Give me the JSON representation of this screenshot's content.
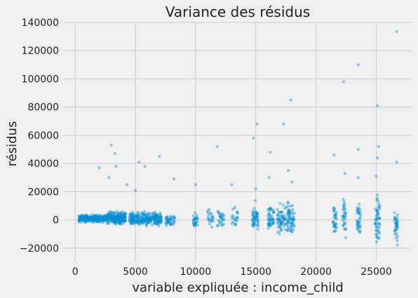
{
  "chart_data": {
    "type": "scatter",
    "title": "Variance des résidus",
    "xlabel": "variable expliquée : income_child",
    "ylabel": "résidus",
    "xlim": [
      -1000,
      28000
    ],
    "ylim": [
      -30000,
      140000
    ],
    "xticks": [
      0,
      5000,
      10000,
      15000,
      20000,
      25000
    ],
    "xtick_labels": [
      "0",
      "5000",
      "10000",
      "15000",
      "20000",
      "25000"
    ],
    "yticks": [
      -20000,
      0,
      20000,
      40000,
      60000,
      80000,
      100000,
      120000,
      140000
    ],
    "ytick_labels": [
      "−20000",
      "0",
      "20000",
      "40000",
      "60000",
      "80000",
      "100000",
      "120000",
      "140000"
    ],
    "grid": true,
    "background_color": "#f0f0f0",
    "grid_color": "#cbcbcb",
    "point_color": "#008fd5",
    "point_opacity": 0.4,
    "clusters": [
      {
        "x_range": [
          300,
          2500
        ],
        "y_range": [
          -2500,
          4500
        ],
        "count": 260
      },
      {
        "x_range": [
          2500,
          4200
        ],
        "y_range": [
          -4000,
          7000
        ],
        "count": 230
      },
      {
        "x_range": [
          4500,
          7200
        ],
        "y_range": [
          -6000,
          7000
        ],
        "count": 260
      },
      {
        "x_range": [
          7500,
          8300
        ],
        "y_range": [
          -6000,
          5000
        ],
        "count": 40
      },
      {
        "x_range": [
          9800,
          10200
        ],
        "y_range": [
          -9000,
          8000
        ],
        "count": 25
      },
      {
        "x_range": [
          11000,
          11500
        ],
        "y_range": [
          -8000,
          10000
        ],
        "count": 20
      },
      {
        "x_range": [
          11800,
          12400
        ],
        "y_range": [
          -8000,
          10000
        ],
        "count": 25
      },
      {
        "x_range": [
          13000,
          13500
        ],
        "y_range": [
          -8000,
          10000
        ],
        "count": 20
      },
      {
        "x_range": [
          14700,
          15200
        ],
        "y_range": [
          -14000,
          16000
        ],
        "count": 50
      },
      {
        "x_range": [
          16000,
          16500
        ],
        "y_range": [
          -10000,
          14000
        ],
        "count": 45
      },
      {
        "x_range": [
          16800,
          18200
        ],
        "y_range": [
          -14000,
          16000
        ],
        "count": 120
      },
      {
        "x_range": [
          21400,
          21700
        ],
        "y_range": [
          -16000,
          18000
        ],
        "count": 30
      },
      {
        "x_range": [
          22200,
          22500
        ],
        "y_range": [
          -18000,
          20000
        ],
        "count": 30
      },
      {
        "x_range": [
          23400,
          23700
        ],
        "y_range": [
          -20000,
          20000
        ],
        "count": 35
      },
      {
        "x_range": [
          24900,
          25300
        ],
        "y_range": [
          -24000,
          24000
        ],
        "count": 50
      },
      {
        "x_range": [
          26500,
          26800
        ],
        "y_range": [
          -22000,
          16000
        ],
        "count": 35
      }
    ],
    "outliers": [
      {
        "x": 3000,
        "y": 53000
      },
      {
        "x": 3300,
        "y": 47000
      },
      {
        "x": 3400,
        "y": 38000
      },
      {
        "x": 2000,
        "y": 37000
      },
      {
        "x": 2800,
        "y": 30000
      },
      {
        "x": 4300,
        "y": 25000
      },
      {
        "x": 5000,
        "y": 21000
      },
      {
        "x": 5300,
        "y": 41000
      },
      {
        "x": 5800,
        "y": 38000
      },
      {
        "x": 7000,
        "y": 45000
      },
      {
        "x": 8200,
        "y": 29000
      },
      {
        "x": 10000,
        "y": 25000
      },
      {
        "x": 11800,
        "y": 52000
      },
      {
        "x": 13000,
        "y": 25000
      },
      {
        "x": 14800,
        "y": 58000
      },
      {
        "x": 15100,
        "y": 68000
      },
      {
        "x": 16200,
        "y": 48000
      },
      {
        "x": 17300,
        "y": 68000
      },
      {
        "x": 17900,
        "y": 85000
      },
      {
        "x": 17700,
        "y": 35000
      },
      {
        "x": 21500,
        "y": 46000
      },
      {
        "x": 22300,
        "y": 98000
      },
      {
        "x": 22400,
        "y": 33000
      },
      {
        "x": 23500,
        "y": 110000
      },
      {
        "x": 23500,
        "y": 50000
      },
      {
        "x": 25100,
        "y": 81000
      },
      {
        "x": 25200,
        "y": 52000
      },
      {
        "x": 25100,
        "y": 44000
      },
      {
        "x": 26700,
        "y": 133500
      },
      {
        "x": 26700,
        "y": 41000
      },
      {
        "x": 23500,
        "y": 30000
      },
      {
        "x": 25000,
        "y": 31000
      },
      {
        "x": 18000,
        "y": 27000
      },
      {
        "x": 16100,
        "y": 30000
      },
      {
        "x": 15000,
        "y": 22000
      }
    ]
  }
}
